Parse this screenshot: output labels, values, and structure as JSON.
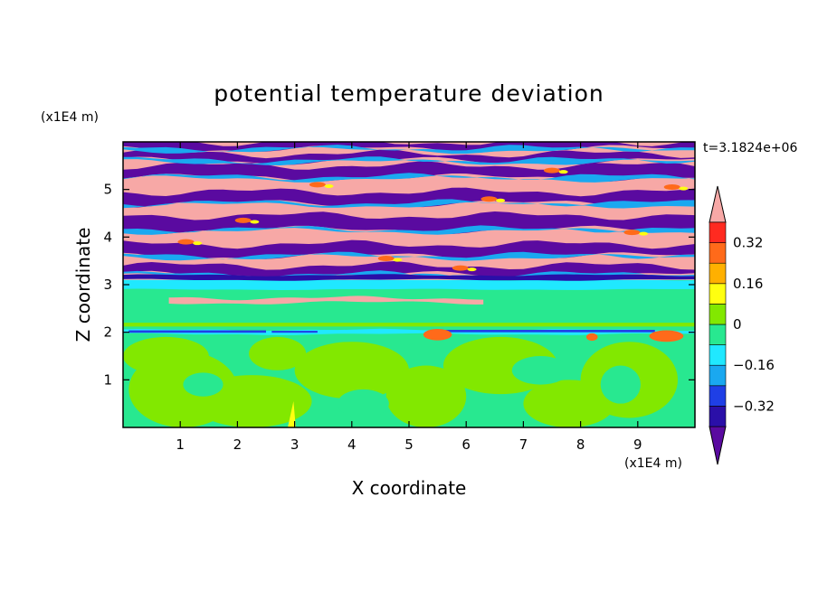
{
  "chart_data": {
    "type": "heatmap",
    "title": "potential temperature deviation",
    "xlabel": "X coordinate",
    "ylabel": "Z coordinate",
    "x_unit": "(x1E4 m)",
    "y_unit": "(x1E4 m)",
    "time_label": "t=3.1824e+06",
    "xlim": [
      0,
      10
    ],
    "ylim": [
      0,
      6
    ],
    "x_ticks": [
      "1",
      "2",
      "3",
      "4",
      "5",
      "6",
      "7",
      "8",
      "9"
    ],
    "y_ticks": [
      "1",
      "2",
      "3",
      "4",
      "5"
    ],
    "colorbar": {
      "labels": [
        "0.32",
        "0.16",
        "0",
        "-0.16",
        "-0.32"
      ],
      "label_values": [
        0.32,
        0.16,
        0,
        -0.16,
        -0.32
      ],
      "levels": [
        -0.4,
        -0.32,
        -0.24,
        -0.16,
        -0.08,
        0,
        0.08,
        0.16,
        0.24,
        0.32,
        0.4
      ],
      "colors": [
        "#5a0aa0",
        "#2a0fa8",
        "#1f3fe6",
        "#1aa8f0",
        "#20e8ff",
        "#28e890",
        "#82e800",
        "#ffff10",
        "#ffb000",
        "#ff6a1a",
        "#ff2a20",
        "#f7a8a6"
      ],
      "extend": "both"
    },
    "layers": {
      "z_0_to_1_9": "mostly 0 to 0.08 with patches -0.08 to 0",
      "z_2": "thin band with values from -0.32 to 0.4",
      "z_2_1_to_3": "-0.08 to 0",
      "z_3_1_to_6": "alternating layers of > 0.4 and < -0.4 with thin transition bands"
    }
  }
}
